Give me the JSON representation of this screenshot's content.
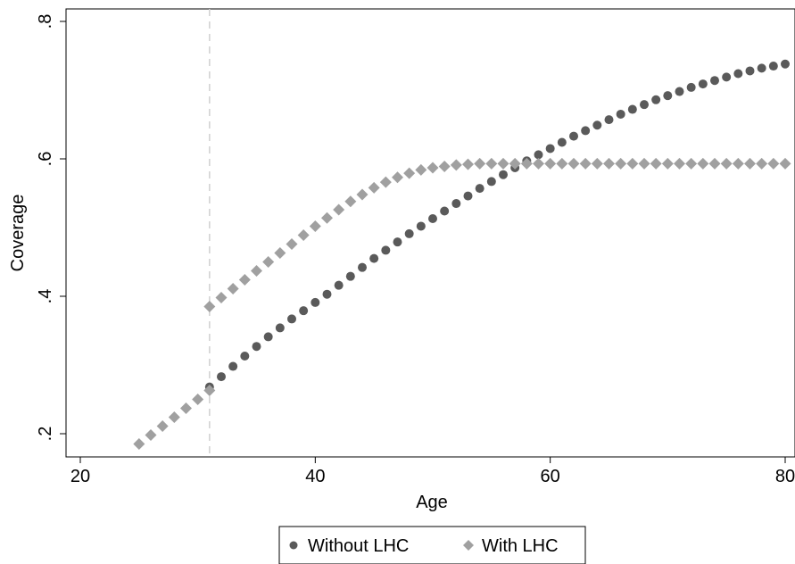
{
  "chart_data": {
    "type": "scatter",
    "xlabel": "Age",
    "ylabel": "Coverage",
    "xlim": [
      20,
      80
    ],
    "ylim": [
      0.18,
      0.82
    ],
    "xticks": [
      {
        "value": 20,
        "label": "20"
      },
      {
        "value": 40,
        "label": "40"
      },
      {
        "value": 60,
        "label": "60"
      },
      {
        "value": 80,
        "label": "80"
      }
    ],
    "yticks": [
      {
        "value": 0.2,
        "label": ".2"
      },
      {
        "value": 0.4,
        "label": ".4"
      },
      {
        "value": 0.6,
        "label": ".6"
      },
      {
        "value": 0.8,
        "label": ".8"
      }
    ],
    "reference_line": {
      "x": 31,
      "style": "dashed",
      "color": "#d0d0d0"
    },
    "grid": false,
    "legend_position": "bottom",
    "series": [
      {
        "name": "Without LHC",
        "marker": "circle",
        "color": "#5a5a5a",
        "x": [
          31,
          32,
          33,
          34,
          35,
          36,
          37,
          38,
          39,
          40,
          41,
          42,
          43,
          44,
          45,
          46,
          47,
          48,
          49,
          50,
          51,
          52,
          53,
          54,
          55,
          56,
          57,
          58,
          59,
          60,
          61,
          62,
          63,
          64,
          65,
          66,
          67,
          68,
          69,
          70,
          71,
          72,
          73,
          74,
          75,
          76,
          77,
          78,
          79,
          80
        ],
        "y": [
          0.268,
          0.283,
          0.298,
          0.313,
          0.327,
          0.341,
          0.354,
          0.367,
          0.379,
          0.391,
          0.403,
          0.416,
          0.429,
          0.442,
          0.455,
          0.467,
          0.479,
          0.491,
          0.502,
          0.513,
          0.524,
          0.535,
          0.546,
          0.557,
          0.567,
          0.577,
          0.587,
          0.597,
          0.606,
          0.615,
          0.624,
          0.633,
          0.641,
          0.649,
          0.657,
          0.665,
          0.672,
          0.679,
          0.686,
          0.692,
          0.698,
          0.704,
          0.709,
          0.714,
          0.719,
          0.724,
          0.728,
          0.732,
          0.735,
          0.738
        ]
      },
      {
        "name": "With LHC",
        "marker": "diamond",
        "color": "#a0a0a0",
        "x": [
          25,
          26,
          27,
          28,
          29,
          30,
          31,
          31,
          32,
          33,
          34,
          35,
          36,
          37,
          38,
          39,
          40,
          41,
          42,
          43,
          44,
          45,
          46,
          47,
          48,
          49,
          50,
          51,
          52,
          53,
          54,
          55,
          56,
          57,
          58,
          59,
          60,
          61,
          62,
          63,
          64,
          65,
          66,
          67,
          68,
          69,
          70,
          71,
          72,
          73,
          74,
          75,
          76,
          77,
          78,
          79,
          80
        ],
        "y": [
          0.185,
          0.198,
          0.211,
          0.224,
          0.237,
          0.25,
          0.263,
          0.385,
          0.398,
          0.411,
          0.424,
          0.437,
          0.45,
          0.463,
          0.476,
          0.489,
          0.502,
          0.514,
          0.526,
          0.538,
          0.548,
          0.558,
          0.566,
          0.573,
          0.579,
          0.584,
          0.587,
          0.589,
          0.591,
          0.592,
          0.593,
          0.593,
          0.593,
          0.593,
          0.593,
          0.593,
          0.593,
          0.593,
          0.593,
          0.593,
          0.593,
          0.593,
          0.593,
          0.593,
          0.593,
          0.593,
          0.593,
          0.593,
          0.593,
          0.593,
          0.593,
          0.593,
          0.593,
          0.593,
          0.593,
          0.593,
          0.593
        ]
      }
    ]
  }
}
